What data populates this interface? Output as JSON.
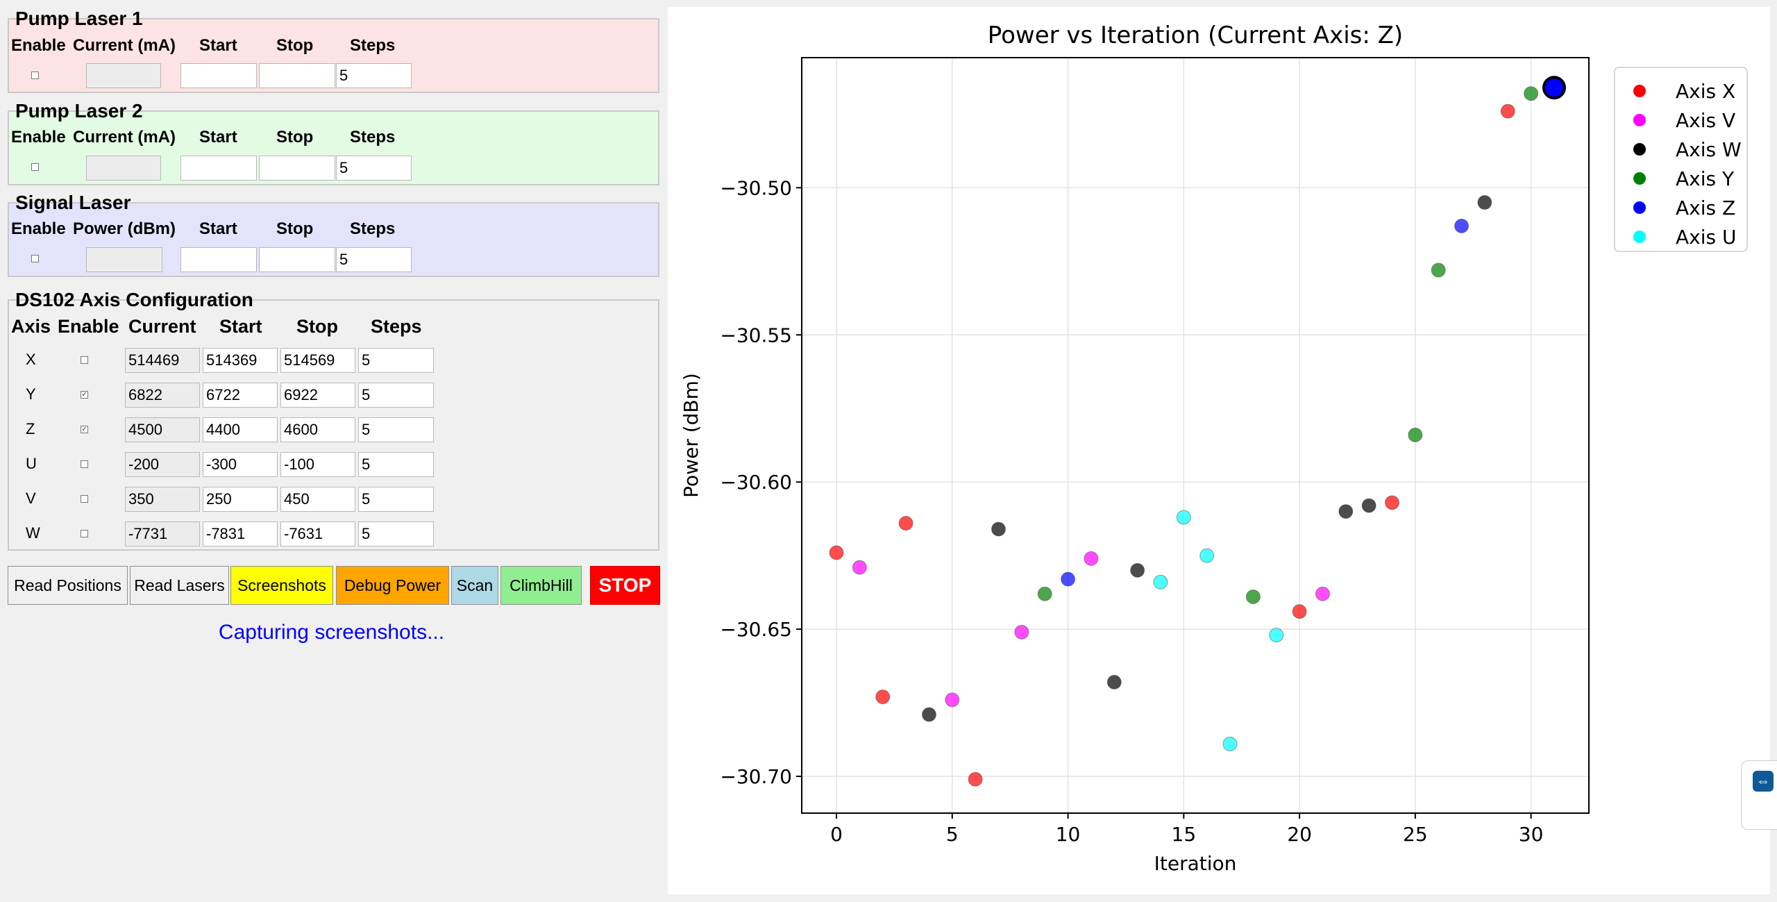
{
  "pump1": {
    "title": "Pump Laser 1",
    "headers": [
      "Enable",
      "Current (mA)",
      "Start",
      "Stop",
      "Steps"
    ],
    "enabled": false,
    "current": "",
    "start": "",
    "stop": "",
    "steps": "5"
  },
  "pump2": {
    "title": "Pump Laser 2",
    "headers": [
      "Enable",
      "Current (mA)",
      "Start",
      "Stop",
      "Steps"
    ],
    "enabled": false,
    "current": "",
    "start": "",
    "stop": "",
    "steps": "5"
  },
  "signal": {
    "title": "Signal Laser",
    "headers": [
      "Enable",
      "Power (dBm)",
      "Start",
      "Stop",
      "Steps"
    ],
    "enabled": false,
    "current": "",
    "start": "",
    "stop": "",
    "steps": "5"
  },
  "axes": {
    "title": "DS102 Axis Configuration",
    "headers": [
      "Axis",
      "Enable",
      "Current",
      "Start",
      "Stop",
      "Steps"
    ],
    "rows": [
      {
        "axis": "X",
        "enabled": false,
        "current": "514469",
        "start": "514369",
        "stop": "514569",
        "steps": "5"
      },
      {
        "axis": "Y",
        "enabled": true,
        "current": "6822",
        "start": "6722",
        "stop": "6922",
        "steps": "5"
      },
      {
        "axis": "Z",
        "enabled": true,
        "current": "4500",
        "start": "4400",
        "stop": "4600",
        "steps": "5"
      },
      {
        "axis": "U",
        "enabled": false,
        "current": "-200",
        "start": "-300",
        "stop": "-100",
        "steps": "5"
      },
      {
        "axis": "V",
        "enabled": false,
        "current": "350",
        "start": "250",
        "stop": "450",
        "steps": "5"
      },
      {
        "axis": "W",
        "enabled": false,
        "current": "-7731",
        "start": "-7831",
        "stop": "-7631",
        "steps": "5"
      }
    ]
  },
  "buttons": {
    "read_positions": "Read Positions",
    "read_lasers": "Read Lasers",
    "screenshots": "Screenshots",
    "debug_power": "Debug Power",
    "scan": "Scan",
    "climbhill": "ClimbHill",
    "stop": "STOP"
  },
  "colors": {
    "pump1_bg": "#fde3e3",
    "pump2_bg": "#e3fbe3",
    "signal_bg": "#e3e3fb",
    "screenshots_btn": "#ffff00",
    "debug_btn": "#ffa500",
    "scan_btn": "#add8e6",
    "climbhill_btn": "#90ee90",
    "stop_btn": "#ff0000",
    "status_text": "#0000ff"
  },
  "status": "Capturing screenshots...",
  "chart_data": {
    "type": "scatter",
    "title": "Power vs Iteration (Current Axis: Z)",
    "xlabel": "Iteration",
    "ylabel": "Power (dBm)",
    "xlim": [
      -1.5,
      32.5
    ],
    "ylim": [
      -30.7125,
      -30.4558
    ],
    "xticks": [
      0,
      5,
      10,
      15,
      20,
      25,
      30
    ],
    "yticks": [
      -30.5,
      -30.55,
      -30.6,
      -30.65,
      -30.7
    ],
    "grid": true,
    "legend_position": "right",
    "series": [
      {
        "name": "Axis X",
        "color": "#ff0000",
        "points": [
          [
            0,
            -30.624
          ],
          [
            2,
            -30.673
          ],
          [
            3,
            -30.614
          ],
          [
            6,
            -30.701
          ],
          [
            20,
            -30.644
          ],
          [
            24,
            -30.607
          ],
          [
            29,
            -30.474
          ]
        ]
      },
      {
        "name": "Axis V",
        "color": "#ff00ff",
        "points": [
          [
            1,
            -30.629
          ],
          [
            5,
            -30.674
          ],
          [
            8,
            -30.651
          ],
          [
            11,
            -30.626
          ],
          [
            21,
            -30.638
          ]
        ]
      },
      {
        "name": "Axis W",
        "color": "#000000",
        "points": [
          [
            4,
            -30.679
          ],
          [
            7,
            -30.616
          ],
          [
            12,
            -30.668
          ],
          [
            13,
            -30.63
          ],
          [
            22,
            -30.61
          ],
          [
            23,
            -30.608
          ],
          [
            28,
            -30.505
          ]
        ]
      },
      {
        "name": "Axis Y",
        "color": "#008000",
        "points": [
          [
            9,
            -30.638
          ],
          [
            18,
            -30.639
          ],
          [
            25,
            -30.584
          ],
          [
            26,
            -30.528
          ],
          [
            30,
            -30.468
          ]
        ]
      },
      {
        "name": "Axis Z",
        "color": "#0000ff",
        "points": [
          [
            10,
            -30.633
          ],
          [
            27,
            -30.513
          ]
        ]
      },
      {
        "name": "Axis U",
        "color": "#00ffff",
        "points": [
          [
            14,
            -30.634
          ],
          [
            15,
            -30.612
          ],
          [
            16,
            -30.625
          ],
          [
            17,
            -30.689
          ],
          [
            19,
            -30.652
          ]
        ]
      }
    ],
    "highlight": {
      "x": 31,
      "y": -30.466,
      "color": "#0000ff"
    }
  }
}
